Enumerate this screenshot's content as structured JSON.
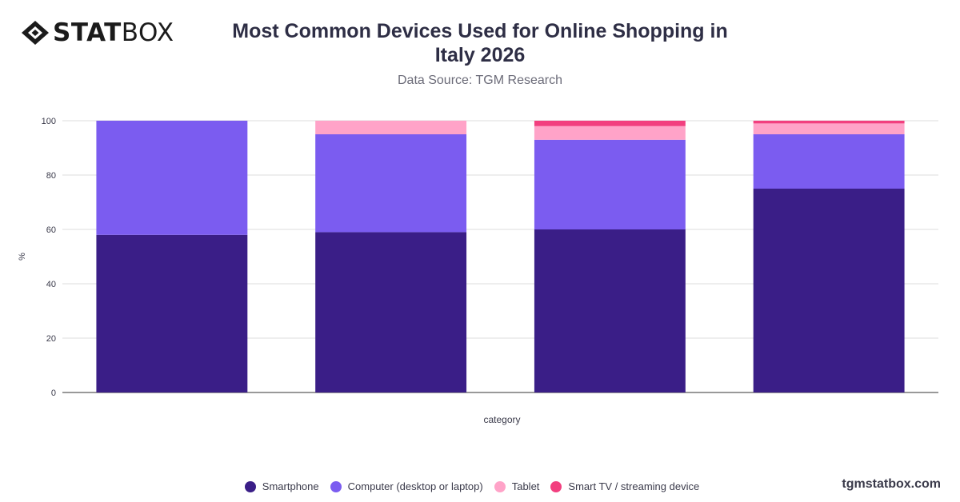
{
  "brand": {
    "logo_bold": "STAT",
    "logo_light": "BOX",
    "watermark": "tgmstatbox.com"
  },
  "header": {
    "title_line1": "Most Common Devices Used for Online Shopping in",
    "title_line2": "Italy 2026",
    "subtitle": "Data Source: TGM Research"
  },
  "chart_data": {
    "type": "bar",
    "stacked": true,
    "categories": [
      "",
      "",
      "",
      ""
    ],
    "series": [
      {
        "name": "Smartphone",
        "color": "#3a1e87",
        "values": [
          58,
          59,
          60,
          75
        ]
      },
      {
        "name": "Computer (desktop or laptop)",
        "color": "#7b5cf0",
        "values": [
          42,
          36,
          33,
          20
        ]
      },
      {
        "name": "Tablet",
        "color": "#ffa3c8",
        "values": [
          0,
          5,
          5,
          4
        ]
      },
      {
        "name": "Smart TV / streaming device",
        "color": "#f23f7f",
        "values": [
          0,
          0,
          2,
          1
        ]
      }
    ],
    "xlabel": "category",
    "ylabel": "%",
    "ylim": [
      0,
      100
    ],
    "yticks": [
      0,
      20,
      40,
      60,
      80,
      100
    ],
    "grid": true,
    "legend": "bottom"
  }
}
